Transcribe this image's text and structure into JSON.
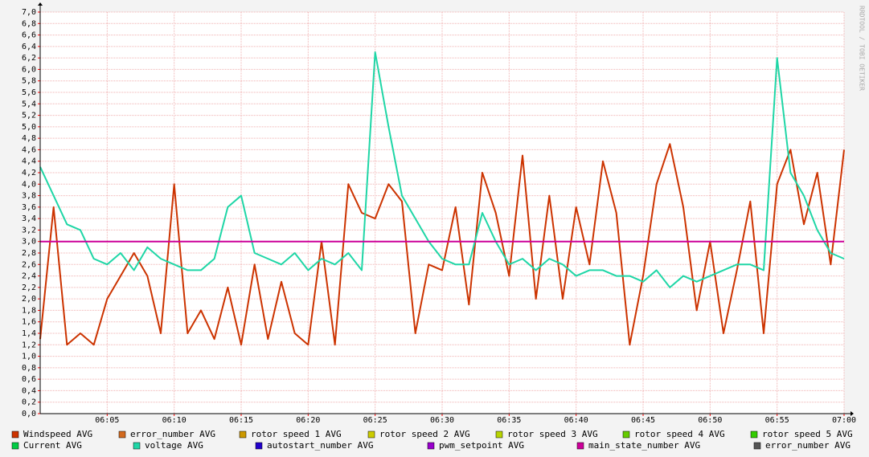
{
  "chart_data": {
    "type": "line",
    "watermark": "RRDTOOL / TOBI OETIKER",
    "x": [
      "06:00",
      "06:01",
      "06:02",
      "06:03",
      "06:04",
      "06:05",
      "06:06",
      "06:07",
      "06:08",
      "06:09",
      "06:10",
      "06:11",
      "06:12",
      "06:13",
      "06:14",
      "06:15",
      "06:16",
      "06:17",
      "06:18",
      "06:19",
      "06:20",
      "06:21",
      "06:22",
      "06:23",
      "06:24",
      "06:25",
      "06:26",
      "06:27",
      "06:28",
      "06:29",
      "06:30",
      "06:31",
      "06:32",
      "06:33",
      "06:34",
      "06:35",
      "06:36",
      "06:37",
      "06:38",
      "06:39",
      "06:40",
      "06:41",
      "06:42",
      "06:43",
      "06:44",
      "06:45",
      "06:46",
      "06:47",
      "06:48",
      "06:49",
      "06:50",
      "06:51",
      "06:52",
      "06:53",
      "06:54",
      "06:55",
      "06:56",
      "06:57",
      "06:58",
      "06:59",
      "07:00"
    ],
    "xlim": [
      "06:00",
      "07:00"
    ],
    "xticks": [
      "06:05",
      "06:10",
      "06:15",
      "06:20",
      "06:25",
      "06:30",
      "06:35",
      "06:40",
      "06:45",
      "06:50",
      "06:55",
      "07:00"
    ],
    "ylim": [
      0,
      7.0
    ],
    "yticks": [
      {
        "value": 0,
        "label": "0,0"
      },
      {
        "value": 0.2,
        "label": "0,2"
      },
      {
        "value": 0.4,
        "label": "0,4"
      },
      {
        "value": 0.6,
        "label": "0,6"
      },
      {
        "value": 0.8,
        "label": "0,8"
      },
      {
        "value": 1.0,
        "label": "1,0"
      },
      {
        "value": 1.2,
        "label": "1,2"
      },
      {
        "value": 1.4,
        "label": "1,4"
      },
      {
        "value": 1.6,
        "label": "1,6"
      },
      {
        "value": 1.8,
        "label": "1,8"
      },
      {
        "value": 2.0,
        "label": "2,0"
      },
      {
        "value": 2.2,
        "label": "2,2"
      },
      {
        "value": 2.4,
        "label": "2,4"
      },
      {
        "value": 2.6,
        "label": "2,6"
      },
      {
        "value": 2.8,
        "label": "2,8"
      },
      {
        "value": 3.0,
        "label": "3,0"
      },
      {
        "value": 3.2,
        "label": "3,2"
      },
      {
        "value": 3.4,
        "label": "3,4"
      },
      {
        "value": 3.6,
        "label": "3,6"
      },
      {
        "value": 3.8,
        "label": "3,8"
      },
      {
        "value": 4.0,
        "label": "4,0"
      },
      {
        "value": 4.2,
        "label": "4,2"
      },
      {
        "value": 4.4,
        "label": "4,4"
      },
      {
        "value": 4.6,
        "label": "4,6"
      },
      {
        "value": 4.8,
        "label": "4,8"
      },
      {
        "value": 5.0,
        "label": "5,0"
      },
      {
        "value": 5.2,
        "label": "5,2"
      },
      {
        "value": 5.4,
        "label": "5,4"
      },
      {
        "value": 5.6,
        "label": "5,6"
      },
      {
        "value": 5.8,
        "label": "5,8"
      },
      {
        "value": 6.0,
        "label": "6,0"
      },
      {
        "value": 6.2,
        "label": "6,2"
      },
      {
        "value": 6.4,
        "label": "6,4"
      },
      {
        "value": 6.6,
        "label": "6,6"
      },
      {
        "value": 6.8,
        "label": "6,8"
      },
      {
        "value": 7.0,
        "label": "7,0"
      }
    ],
    "grid": true,
    "series": [
      {
        "name": "Windspeed AVG",
        "color": "#cc3300",
        "values": [
          1.3,
          3.6,
          1.2,
          1.4,
          1.2,
          2.0,
          2.4,
          2.8,
          2.4,
          1.4,
          4.0,
          1.4,
          1.8,
          1.3,
          2.2,
          1.2,
          2.6,
          1.3,
          2.3,
          1.4,
          1.2,
          3.0,
          1.2,
          4.0,
          3.5,
          3.4,
          4.0,
          3.7,
          1.4,
          2.6,
          2.5,
          3.6,
          1.9,
          4.2,
          3.5,
          2.4,
          4.5,
          2.0,
          3.8,
          2.0,
          3.6,
          2.6,
          4.4,
          3.5,
          1.2,
          2.4,
          4.0,
          4.7,
          3.6,
          1.8,
          3.0,
          1.4,
          2.5,
          3.7,
          1.4,
          4.0,
          4.6,
          3.3,
          4.2,
          2.6,
          4.6
        ]
      },
      {
        "name": "error_number AVG",
        "color": "#d2691e"
      },
      {
        "name": "rotor speed 1 AVG",
        "color": "#cc9900"
      },
      {
        "name": "rotor speed 2 AVG",
        "color": "#cccc00"
      },
      {
        "name": "rotor speed 3 AVG",
        "color": "#b8d400"
      },
      {
        "name": "rotor speed 4 AVG",
        "color": "#66cc00"
      },
      {
        "name": "rotor speed 5 AVG",
        "color": "#33cc00"
      },
      {
        "name": "Current AVG",
        "color": "#00cc44"
      },
      {
        "name": "voltage AVG",
        "color": "#1fd6a6",
        "values": [
          4.3,
          3.8,
          3.3,
          3.2,
          2.7,
          2.6,
          2.8,
          2.5,
          2.9,
          2.7,
          2.6,
          2.5,
          2.5,
          2.7,
          3.6,
          3.8,
          2.8,
          2.7,
          2.6,
          2.8,
          2.5,
          2.7,
          2.6,
          2.8,
          2.5,
          6.3,
          5.0,
          3.8,
          3.4,
          3.0,
          2.7,
          2.6,
          2.6,
          3.5,
          3.0,
          2.6,
          2.7,
          2.5,
          2.7,
          2.6,
          2.4,
          2.5,
          2.5,
          2.4,
          2.4,
          2.3,
          2.5,
          2.2,
          2.4,
          2.3,
          2.4,
          2.5,
          2.6,
          2.6,
          2.5,
          6.2,
          4.2,
          3.8,
          3.2,
          2.8,
          2.7
        ]
      },
      {
        "name": "autostart_number AVG",
        "color": "#2200cc"
      },
      {
        "name": "pwm_setpoint AVG",
        "color": "#9900cc"
      },
      {
        "name": "main_state_number AVG",
        "color": "#cc0099",
        "values": [
          3,
          3,
          3,
          3,
          3,
          3,
          3,
          3,
          3,
          3,
          3,
          3,
          3,
          3,
          3,
          3,
          3,
          3,
          3,
          3,
          3,
          3,
          3,
          3,
          3,
          3,
          3,
          3,
          3,
          3,
          3,
          3,
          3,
          3,
          3,
          3,
          3,
          3,
          3,
          3,
          3,
          3,
          3,
          3,
          3,
          3,
          3,
          3,
          3,
          3,
          3,
          3,
          3,
          3,
          3,
          3,
          3,
          3,
          3,
          3,
          3
        ]
      },
      {
        "name": "error_number AVG",
        "color": "#555555"
      }
    ]
  }
}
